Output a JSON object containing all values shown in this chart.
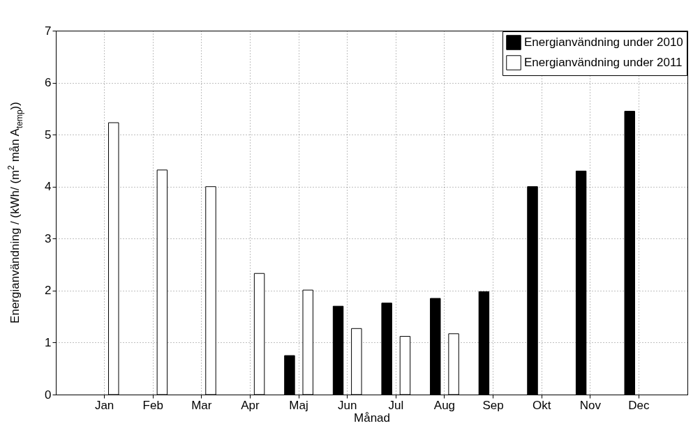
{
  "chart_data": {
    "type": "bar",
    "xlabel": "Månad",
    "ylabel": "Energianvändning / (kWh/ (m$^{2}$ mån A$_{temp}$))",
    "categories": [
      "Jan",
      "Feb",
      "Mar",
      "Apr",
      "Maj",
      "Jun",
      "Jul",
      "Aug",
      "Sep",
      "Okt",
      "Nov",
      "Dec"
    ],
    "series": [
      {
        "name": "Energianvändning under 2010",
        "color": "#000000",
        "values": [
          null,
          null,
          null,
          null,
          0.75,
          1.7,
          1.76,
          1.85,
          1.98,
          4.0,
          4.3,
          5.45
        ]
      },
      {
        "name": "Energianvändning under 2011",
        "color": "#ffffff",
        "values": [
          5.23,
          4.32,
          4.0,
          2.33,
          2.01,
          1.27,
          1.12,
          1.17,
          null,
          null,
          null,
          null
        ]
      }
    ],
    "ylim": [
      0,
      7
    ],
    "yticks": [
      0,
      1,
      2,
      3,
      4,
      5,
      6,
      7
    ],
    "grid": true,
    "legend": "top right"
  }
}
